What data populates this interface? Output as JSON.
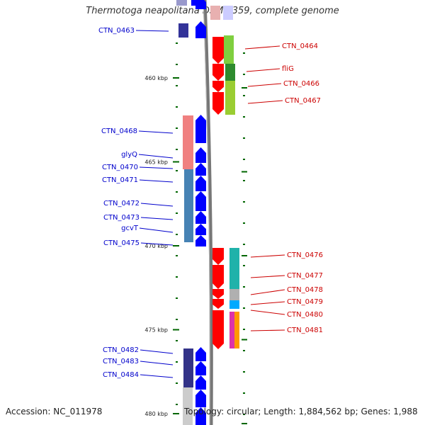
{
  "title": "Thermotoga neapolitana DSM 4359, complete genome",
  "accession_text": "Accession: NC_011978",
  "topology_text": "Topology: circular; Length: 1,884,562 bp; Genes: 1,988",
  "colors": {
    "left_label": "#0000cc",
    "right_label": "#cc0000",
    "tick": "#006600",
    "backbone": "#777777",
    "cds_blue": "#0000ff",
    "cds_red": "#ff0000"
  },
  "kbp_ticks": [
    {
      "label": "460 kbp",
      "value": 460
    },
    {
      "label": "465 kbp",
      "value": 465
    },
    {
      "label": "470 kbp",
      "value": 470
    },
    {
      "label": "475 kbp",
      "value": 475
    },
    {
      "label": "480 kbp",
      "value": 480
    }
  ],
  "left_genes": [
    "CTN_0463",
    "CTN_0468",
    "glyQ",
    "CTN_0470",
    "CTN_0471",
    "CTN_0472",
    "CTN_0473",
    "gcvT",
    "CTN_0475",
    "CTN_0482",
    "CTN_0483",
    "CTN_0484"
  ],
  "right_genes": [
    "CTN_0464",
    "fliG",
    "CTN_0466",
    "CTN_0467",
    "CTN_0476",
    "CTN_0477",
    "CTN_0478",
    "CTN_0479",
    "CTN_0480",
    "CTN_0481"
  ]
}
